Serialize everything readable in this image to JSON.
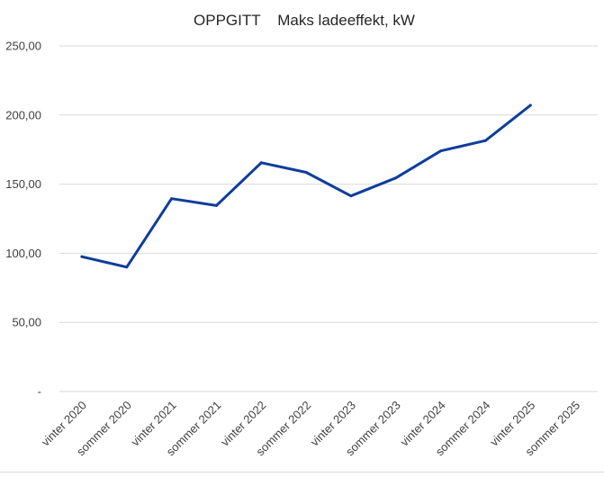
{
  "chart_data": {
    "type": "line",
    "title": "OPPGITT    Maks ladeeffekt, kW",
    "xlabel": "",
    "ylabel": "",
    "categories": [
      "vinter 2020",
      "sommer 2020",
      "vinter 2021",
      "sommer 2021",
      "vinter 2022",
      "sommer 2022",
      "vinter 2023",
      "sommer 2023",
      "vinter 2024",
      "sommer 2024",
      "vinter 2025",
      "sommer 2025"
    ],
    "series": [
      {
        "values": [
          97.5,
          90.0,
          139.5,
          134.5,
          165.5,
          158.5,
          141.5,
          154.5,
          174.0,
          181.5,
          207.0,
          null
        ],
        "color": "#0f3d9c"
      }
    ],
    "ylim": [
      0,
      250
    ],
    "yticks": [
      {
        "value": 0,
        "label": "-"
      },
      {
        "value": 50,
        "label": "50,00"
      },
      {
        "value": 100,
        "label": "100,00"
      },
      {
        "value": 150,
        "label": "150,00"
      },
      {
        "value": 200,
        "label": "200,00"
      },
      {
        "value": 250,
        "label": "250,00"
      }
    ],
    "grid": true,
    "legend": "none",
    "colors": {
      "line": "#0f3d9c",
      "grid": "#d9d9d9"
    }
  }
}
